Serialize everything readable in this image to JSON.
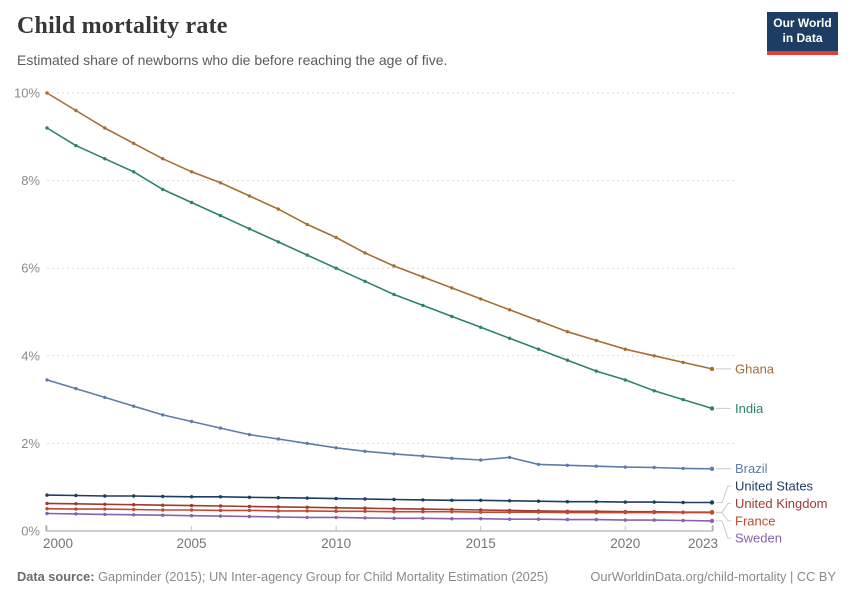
{
  "header": {
    "title": "Child mortality rate",
    "subtitle": "Estimated share of newborns who die before reaching the age of five.",
    "logo": {
      "line1": "Our World",
      "line2": "in Data"
    }
  },
  "footer": {
    "source_label": "Data source:",
    "source_text": " Gapminder (2015); UN Inter-agency Group for Child Mortality Estimation (2025)",
    "link_text": "OurWorldinData.org/child-mortality | CC BY"
  },
  "colors": {
    "grid": "#d9d9d9",
    "axis": "#9e9e9e",
    "tick": "#c6c6c6",
    "connector": "#cccccc",
    "y_label": "#8b8b8b",
    "x_label": "#757575",
    "logo_bg": "#1d3d63",
    "logo_accent": "#e0403a"
  },
  "chart_data": {
    "type": "line",
    "title": "Child mortality rate",
    "subtitle": "Estimated share of newborns who die before reaching the age of five.",
    "xlabel": "",
    "ylabel": "",
    "xlim": [
      2000,
      2023
    ],
    "ylim": [
      0,
      10
    ],
    "x_ticks": [
      2000,
      2005,
      2010,
      2015,
      2020,
      2023
    ],
    "y_ticks": [
      0,
      2,
      4,
      6,
      8,
      10
    ],
    "y_tick_suffix": "%",
    "grid": "horizontal dashed",
    "legend_position": "labels at right line ends",
    "markers": true,
    "x": [
      2000,
      2001,
      2002,
      2003,
      2004,
      2005,
      2006,
      2007,
      2008,
      2009,
      2010,
      2011,
      2012,
      2013,
      2014,
      2015,
      2016,
      2017,
      2018,
      2019,
      2020,
      2021,
      2022,
      2023
    ],
    "series": [
      {
        "name": "Ghana",
        "color": "#a56f34",
        "values": [
          10.0,
          9.6,
          9.2,
          8.85,
          8.5,
          8.2,
          7.95,
          7.65,
          7.35,
          7.0,
          6.7,
          6.35,
          6.05,
          5.8,
          5.55,
          5.3,
          5.05,
          4.8,
          4.55,
          4.35,
          4.15,
          4.0,
          3.85,
          3.7
        ]
      },
      {
        "name": "India",
        "color": "#2c8465",
        "values": [
          9.2,
          8.8,
          8.5,
          8.2,
          7.8,
          7.5,
          7.2,
          6.9,
          6.6,
          6.3,
          6.0,
          5.7,
          5.4,
          5.15,
          4.9,
          4.65,
          4.4,
          4.15,
          3.9,
          3.65,
          3.45,
          3.2,
          3.0,
          2.8
        ]
      },
      {
        "name": "Brazil",
        "color": "#5f7da9",
        "values": [
          3.45,
          3.25,
          3.05,
          2.85,
          2.65,
          2.5,
          2.35,
          2.2,
          2.1,
          2.0,
          1.9,
          1.82,
          1.76,
          1.71,
          1.66,
          1.62,
          1.68,
          1.52,
          1.5,
          1.48,
          1.46,
          1.45,
          1.43,
          1.42
        ]
      },
      {
        "name": "United States",
        "color": "#1d3d63",
        "values": [
          0.82,
          0.81,
          0.8,
          0.8,
          0.79,
          0.78,
          0.78,
          0.77,
          0.76,
          0.75,
          0.74,
          0.73,
          0.72,
          0.71,
          0.7,
          0.7,
          0.69,
          0.68,
          0.67,
          0.67,
          0.66,
          0.66,
          0.65,
          0.65
        ]
      },
      {
        "name": "United Kingdom",
        "color": "#9e3a33",
        "values": [
          0.63,
          0.62,
          0.61,
          0.6,
          0.59,
          0.58,
          0.57,
          0.56,
          0.55,
          0.54,
          0.53,
          0.52,
          0.51,
          0.5,
          0.49,
          0.48,
          0.47,
          0.46,
          0.45,
          0.45,
          0.44,
          0.44,
          0.43,
          0.43
        ]
      },
      {
        "name": "France",
        "color": "#c2492e",
        "values": [
          0.51,
          0.5,
          0.5,
          0.49,
          0.48,
          0.48,
          0.47,
          0.47,
          0.46,
          0.46,
          0.45,
          0.45,
          0.44,
          0.44,
          0.44,
          0.43,
          0.43,
          0.43,
          0.42,
          0.42,
          0.42,
          0.42,
          0.42,
          0.42
        ]
      },
      {
        "name": "Sweden",
        "color": "#8961b0",
        "values": [
          0.4,
          0.39,
          0.38,
          0.37,
          0.36,
          0.35,
          0.34,
          0.33,
          0.32,
          0.31,
          0.31,
          0.3,
          0.29,
          0.29,
          0.28,
          0.28,
          0.27,
          0.27,
          0.26,
          0.26,
          0.25,
          0.25,
          0.24,
          0.23
        ]
      }
    ]
  }
}
